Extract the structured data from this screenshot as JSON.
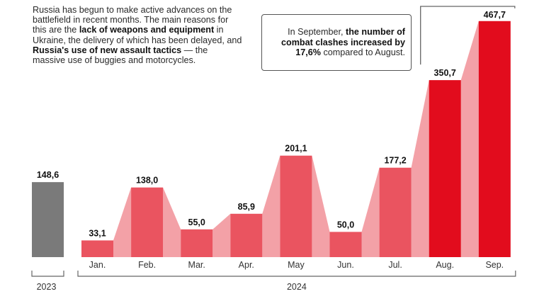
{
  "intro": {
    "t1": "Russia has begun to make active advances on the battlefield in recent months. The main reasons for this are the ",
    "b1": "lack of weapons and equipment",
    "t2": " in Ukraine, the delivery of which has been delayed, and ",
    "b2": "Russia's use of new assault tactics",
    "t3": " — the massive use of buggies and motorcycles."
  },
  "callout": {
    "t1": "In September, ",
    "b1": "the number of combat clashes increased by 17,6%",
    "t2": " compared to August."
  },
  "colors": {
    "baseline_2023": "#7a7a7a",
    "bar_2024": "#ea5460",
    "bar_highlight": "#e20c1d",
    "connector": "#f3a1a7",
    "bracket": "#666666"
  },
  "chart_data": {
    "type": "bar",
    "ylim": [
      0,
      480
    ],
    "baseline": {
      "value": 148.6,
      "value_label": "148,6",
      "period_label": "2023"
    },
    "period_label": "2024",
    "categories": [
      "Jan.",
      "Feb.",
      "Mar.",
      "Apr.",
      "May",
      "Jun.",
      "Jul.",
      "Aug.",
      "Sep."
    ],
    "values": [
      33.1,
      138.0,
      55.0,
      85.9,
      201.1,
      50.0,
      177.2,
      350.7,
      467.7
    ],
    "value_labels": [
      "33,1",
      "138,0",
      "55,0",
      "85,9",
      "201,1",
      "50,0",
      "177,2",
      "350,7",
      "467,7"
    ],
    "highlighted": [
      "Aug.",
      "Sep."
    ],
    "connectors": true
  }
}
